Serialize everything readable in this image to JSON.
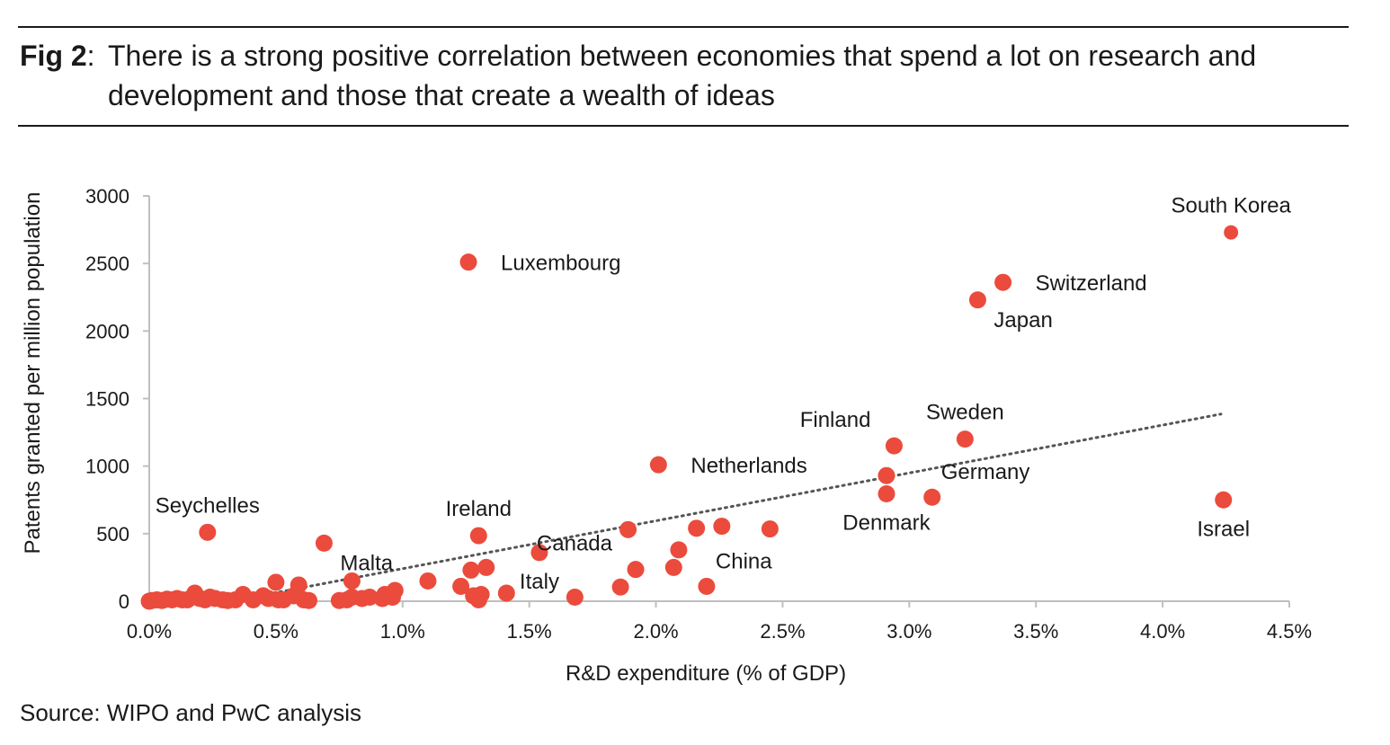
{
  "figure": {
    "label": "Fig 2",
    "label_suffix": ":",
    "title": "There is a strong positive correlation between economies that spend a lot on research and development and those that create a wealth of ideas",
    "source": "Source: WIPO and PwC analysis"
  },
  "colors": {
    "marker": "#EB4B3C",
    "trendline": "#555555",
    "axis": "#bfbfbf",
    "text": "#1a1a1a"
  },
  "chart_data": {
    "type": "scatter",
    "xlabel": "R&D expenditure (% of GDP)",
    "ylabel": "Patents granted per million population",
    "xlim": [
      0,
      4.5
    ],
    "ylim": [
      0,
      3000
    ],
    "xticks": [
      0,
      0.5,
      1.0,
      1.5,
      2.0,
      2.5,
      3.0,
      3.5,
      4.0,
      4.5
    ],
    "xtick_labels": [
      "0.0%",
      "0.5%",
      "1.0%",
      "1.5%",
      "2.0%",
      "2.5%",
      "3.0%",
      "3.5%",
      "4.0%",
      "4.5%"
    ],
    "yticks": [
      0,
      500,
      1000,
      1500,
      2000,
      2500,
      3000
    ],
    "ytick_labels": [
      "0",
      "500",
      "1000",
      "1500",
      "2000",
      "2500",
      "3000"
    ],
    "grid": false,
    "trendline": {
      "style": "dotted",
      "x": [
        0.32,
        4.23
      ],
      "y": [
        0,
        1385
      ]
    },
    "labeled_points": [
      {
        "label": "South Korea",
        "x": 4.27,
        "y": 2730,
        "label_position": "above"
      },
      {
        "label": "Luxembourg",
        "x": 1.26,
        "y": 2510,
        "label_position": "right"
      },
      {
        "label": "Switzerland",
        "x": 3.37,
        "y": 2360,
        "label_position": "right"
      },
      {
        "label": "Japan",
        "x": 3.27,
        "y": 2230,
        "label_position": "right-below"
      },
      {
        "label": "Sweden",
        "x": 3.22,
        "y": 1200,
        "label_position": "above"
      },
      {
        "label": "Finland",
        "x": 2.94,
        "y": 1150,
        "label_position": "above-left"
      },
      {
        "label": "Netherlands",
        "x": 2.01,
        "y": 1010,
        "label_position": "right"
      },
      {
        "label": "Germany",
        "x": 3.09,
        "y": 770,
        "label_position": "above-right"
      },
      {
        "label": "Denmark",
        "x": 2.91,
        "y": 795,
        "label_position": "below"
      },
      {
        "label": "Israel",
        "x": 4.24,
        "y": 750,
        "label_position": "below"
      },
      {
        "label": "Seychelles",
        "x": 0.23,
        "y": 510,
        "label_position": "above"
      },
      {
        "label": "Ireland",
        "x": 1.3,
        "y": 485,
        "label_position": "above"
      },
      {
        "label": "Malta",
        "x": 0.69,
        "y": 430,
        "label_position": "right-below"
      },
      {
        "label": "Canada",
        "x": 1.92,
        "y": 235,
        "label_position": "above-left"
      },
      {
        "label": "Italy",
        "x": 1.54,
        "y": 360,
        "label_position": "below"
      },
      {
        "label": "China",
        "x": 2.2,
        "y": 110,
        "label_position": "above-right"
      }
    ],
    "unlabeled_points": [
      [
        2.91,
        930
      ],
      [
        1.89,
        530
      ],
      [
        2.16,
        540
      ],
      [
        2.26,
        555
      ],
      [
        2.45,
        535
      ],
      [
        2.09,
        380
      ],
      [
        2.07,
        250
      ],
      [
        1.86,
        105
      ],
      [
        1.68,
        30
      ],
      [
        1.41,
        60
      ],
      [
        1.33,
        250
      ],
      [
        1.27,
        230
      ],
      [
        1.31,
        50
      ],
      [
        1.28,
        40
      ],
      [
        1.3,
        10
      ],
      [
        1.23,
        110
      ],
      [
        1.1,
        150
      ],
      [
        0.97,
        80
      ],
      [
        0.96,
        30
      ],
      [
        0.93,
        50
      ],
      [
        0.92,
        20
      ],
      [
        0.87,
        30
      ],
      [
        0.84,
        20
      ],
      [
        0.8,
        150
      ],
      [
        0.8,
        30
      ],
      [
        0.78,
        10
      ],
      [
        0.75,
        5
      ],
      [
        0.63,
        5
      ],
      [
        0.61,
        10
      ],
      [
        0.59,
        120
      ],
      [
        0.57,
        40
      ],
      [
        0.53,
        10
      ],
      [
        0.51,
        10
      ],
      [
        0.5,
        140
      ],
      [
        0.47,
        20
      ],
      [
        0.45,
        40
      ],
      [
        0.41,
        10
      ],
      [
        0.37,
        50
      ],
      [
        0.34,
        10
      ],
      [
        0.31,
        5
      ],
      [
        0.29,
        10
      ],
      [
        0.26,
        20
      ],
      [
        0.24,
        30
      ],
      [
        0.22,
        10
      ],
      [
        0.2,
        20
      ],
      [
        0.18,
        60
      ],
      [
        0.17,
        30
      ],
      [
        0.15,
        10
      ],
      [
        0.13,
        10
      ],
      [
        0.11,
        20
      ],
      [
        0.09,
        10
      ],
      [
        0.07,
        15
      ],
      [
        0.05,
        5
      ],
      [
        0.03,
        10
      ],
      [
        0.01,
        5
      ],
      [
        0.0,
        0
      ]
    ]
  }
}
